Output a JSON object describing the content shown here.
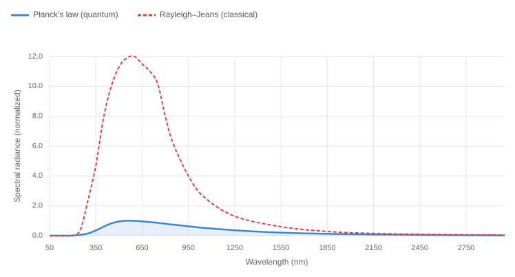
{
  "chart_data": {
    "type": "line",
    "x_label": "Wavelength (nm)",
    "y_label": "Spectral radiance (normalized)",
    "x": [
      50,
      150,
      200,
      250,
      300,
      350,
      400,
      450,
      500,
      550,
      600,
      650,
      700,
      750,
      800,
      850,
      950,
      1050,
      1250,
      1550,
      1850,
      2150,
      2450,
      2750,
      3000
    ],
    "series": [
      {
        "name": "Planck's law (quantum)",
        "color": "#3a86d4",
        "dashed": false,
        "fill": true,
        "values": [
          0,
          0,
          0.01,
          0.05,
          0.15,
          0.35,
          0.6,
          0.82,
          0.95,
          1.0,
          0.99,
          0.96,
          0.91,
          0.86,
          0.8,
          0.74,
          0.63,
          0.52,
          0.36,
          0.2,
          0.12,
          0.08,
          0.05,
          0.03,
          0.02
        ]
      },
      {
        "name": "Rayleigh–Jeans (classical)",
        "color": "#d94040",
        "dashed": true,
        "fill": false,
        "values": [
          0,
          0,
          0,
          0.4,
          2.4,
          4.7,
          7.9,
          10.0,
          11.3,
          11.9,
          12.0,
          11.5,
          11.0,
          10.2,
          8.0,
          6.2,
          4.0,
          2.6,
          1.3,
          0.6,
          0.28,
          0.15,
          0.09,
          0.06,
          0.04
        ]
      }
    ],
    "xlim": [
      50,
      3000
    ],
    "xticks": [
      50,
      350,
      650,
      950,
      1250,
      1550,
      1850,
      2150,
      2450,
      2750
    ],
    "ylim": [
      0,
      12
    ],
    "yticks": [
      {
        "value": 0,
        "label": "0.0"
      },
      {
        "value": 2,
        "label": "2.0"
      },
      {
        "value": 4,
        "label": "4.0"
      },
      {
        "value": 6,
        "label": "6.0"
      },
      {
        "value": 8,
        "label": "8.0"
      },
      {
        "value": 10,
        "label": "10.0"
      },
      {
        "value": 12,
        "label": "12.0"
      }
    ],
    "grid": true
  }
}
